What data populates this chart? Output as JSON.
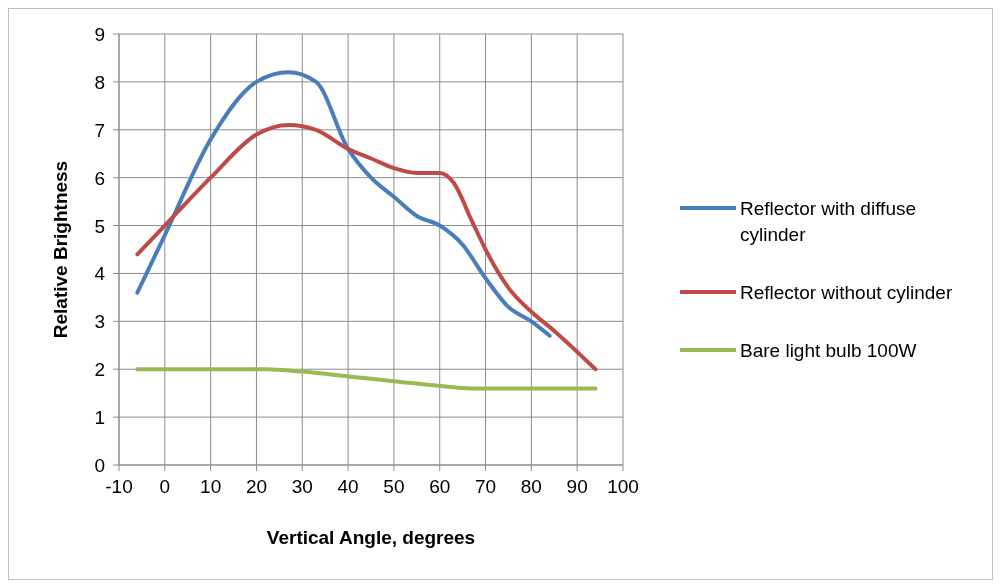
{
  "chart_data": {
    "type": "line",
    "xlabel": "Vertical Angle, degrees",
    "ylabel": "Relative Brightness",
    "xlim": [
      -10,
      100
    ],
    "xticks": [
      -10,
      0,
      10,
      20,
      30,
      40,
      50,
      60,
      70,
      80,
      90,
      100
    ],
    "ylim": [
      0,
      9
    ],
    "yticks": [
      0,
      1,
      2,
      3,
      4,
      5,
      6,
      7,
      8,
      9
    ],
    "grid": true,
    "legend": "right",
    "marker": "none",
    "line_style": "solid",
    "series": [
      {
        "name": "Reflector with diffuse cylinder",
        "color": "#4a7ebb",
        "x": [
          -6,
          0,
          10,
          20,
          27,
          33,
          40,
          45,
          50,
          55,
          60,
          65,
          70,
          75,
          80,
          84
        ],
        "values": [
          3.6,
          4.8,
          6.8,
          8.0,
          8.2,
          8.0,
          6.6,
          6.0,
          5.6,
          5.2,
          5.0,
          4.6,
          3.9,
          3.3,
          3.0,
          2.7
        ]
      },
      {
        "name": "Reflector without cylinder",
        "color": "#be4b48",
        "x": [
          -6,
          0,
          10,
          20,
          27,
          33,
          40,
          45,
          50,
          55,
          60,
          63,
          67,
          70,
          75,
          80,
          85,
          94
        ],
        "values": [
          4.4,
          5.0,
          6.0,
          6.9,
          7.1,
          7.0,
          6.6,
          6.4,
          6.2,
          6.1,
          6.1,
          5.9,
          5.1,
          4.5,
          3.7,
          3.2,
          2.8,
          2.0
        ]
      },
      {
        "name": "Bare light bulb 100W",
        "color": "#98b954",
        "x": [
          -6,
          10,
          22,
          30,
          40,
          50,
          60,
          67,
          80,
          94
        ],
        "values": [
          2.0,
          2.0,
          2.0,
          1.95,
          1.85,
          1.75,
          1.65,
          1.6,
          1.6,
          1.6
        ]
      }
    ]
  }
}
